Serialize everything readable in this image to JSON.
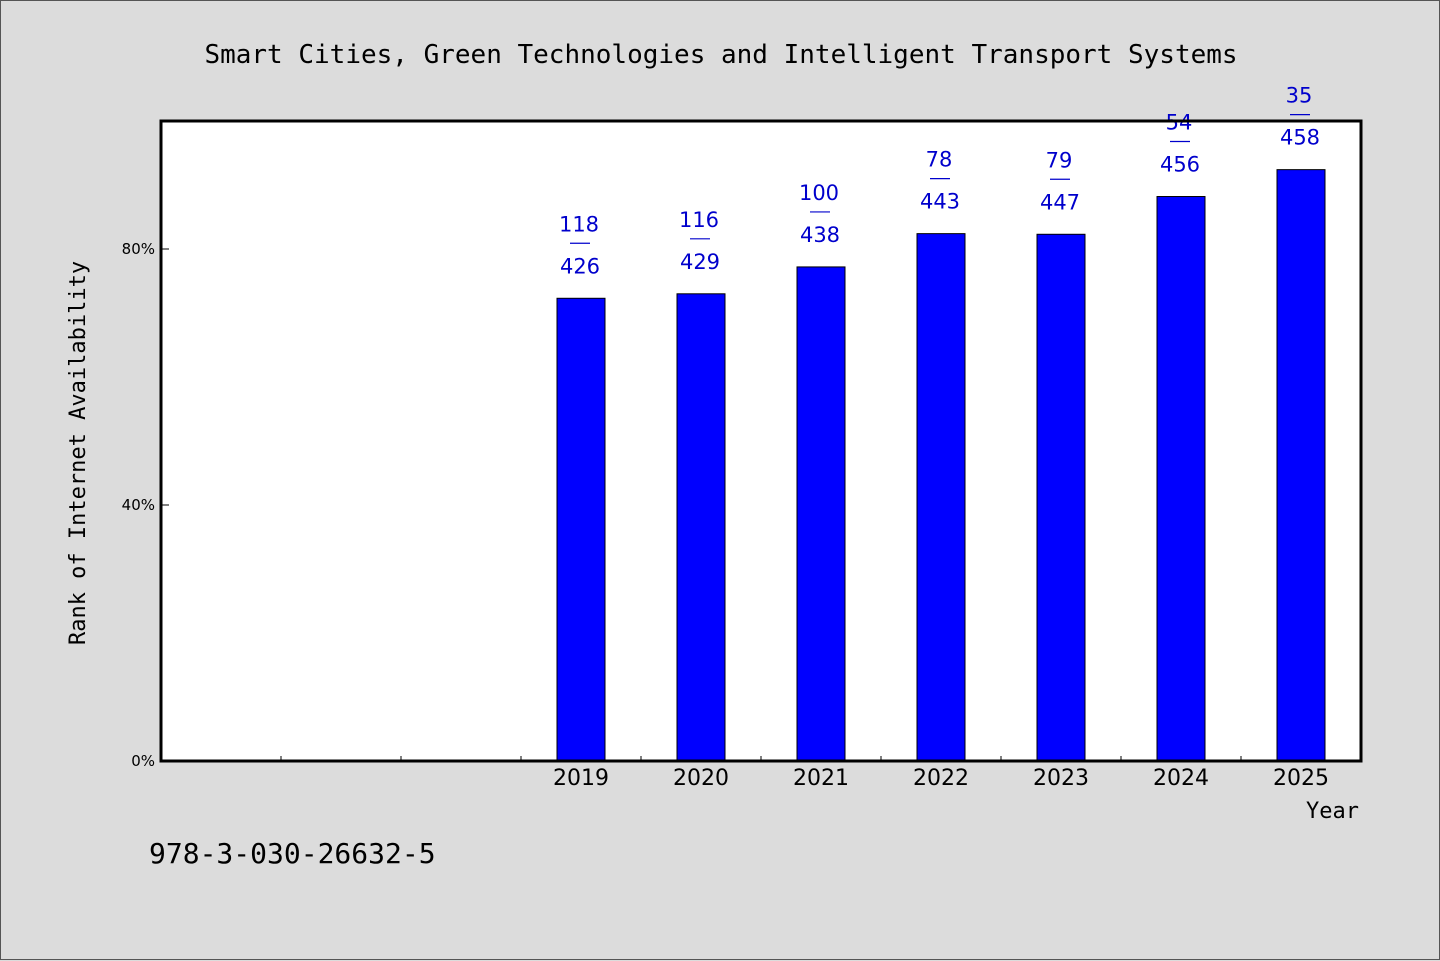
{
  "footnote": "978-3-030-26632-5",
  "chart_data": {
    "type": "bar",
    "title": "Smart Cities, Green Technologies and Intelligent Transport Systems",
    "xlabel": "Year",
    "ylabel": "Rank of Internet Availability",
    "y_tick_labels": [
      "0%",
      "40%",
      "80%"
    ],
    "y_tick_values": [
      0,
      40,
      80
    ],
    "ylim": [
      0,
      100
    ],
    "grid": false,
    "legend": "none",
    "bar_color": "#0000ff",
    "label_color": "#0000cc",
    "categories": [
      "",
      "",
      "",
      "2019",
      "2020",
      "2021",
      "2022",
      "2023",
      "2024",
      "2025"
    ],
    "values": [
      null,
      null,
      null,
      72.3,
      73.0,
      77.2,
      82.4,
      82.3,
      88.2,
      92.4
    ],
    "data_labels": [
      null,
      null,
      null,
      {
        "rank": "118",
        "total": "426"
      },
      {
        "rank": "116",
        "total": "429"
      },
      {
        "rank": "100",
        "total": "438"
      },
      {
        "rank": "78",
        "total": "443"
      },
      {
        "rank": "79",
        "total": "447"
      },
      {
        "rank": "54",
        "total": "456"
      },
      {
        "rank": "35",
        "total": "458"
      }
    ]
  }
}
